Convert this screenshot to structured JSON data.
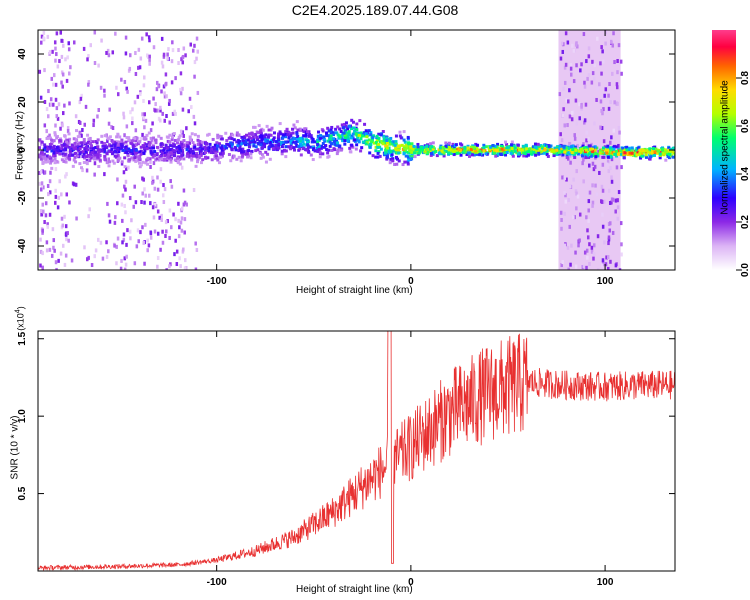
{
  "title": "C2E4.2025.189.07.44.G08",
  "chart_data": [
    {
      "type": "heatmap",
      "xlabel": "Height of straight line (km)",
      "ylabel": "Frequency (Hz)",
      "xlim": [
        -192,
        136
      ],
      "ylim": [
        -50,
        50
      ],
      "xticks": [
        -100,
        0,
        100
      ],
      "yticks": [
        -40,
        -20,
        0,
        20,
        40
      ],
      "colorbar": {
        "label": "Normalized spectral amplitude",
        "range": [
          0,
          1
        ],
        "ticks": [
          0.0,
          0.2,
          0.4,
          0.6,
          0.8
        ],
        "colors": [
          "#ffffff",
          "#dcb4f5",
          "#8c28e6",
          "#2d00ff",
          "#00b4ff",
          "#00ff6e",
          "#b4ff00",
          "#ffdc00",
          "#ff6400",
          "#ff0040",
          "#ff3c8c"
        ]
      },
      "ridge": [
        {
          "x": -192,
          "y": 0
        },
        {
          "x": -150,
          "y": 0
        },
        {
          "x": -110,
          "y": 0
        },
        {
          "x": -80,
          "y": 3
        },
        {
          "x": -60,
          "y": 4
        },
        {
          "x": -50,
          "y": 3
        },
        {
          "x": -40,
          "y": 5
        },
        {
          "x": -30,
          "y": 7
        },
        {
          "x": -20,
          "y": 3
        },
        {
          "x": -10,
          "y": 1
        },
        {
          "x": 0,
          "y": 0
        },
        {
          "x": 40,
          "y": 0
        },
        {
          "x": 70,
          "y": 0
        },
        {
          "x": 110,
          "y": -1
        },
        {
          "x": 136,
          "y": -1
        }
      ],
      "ridge_strength": [
        {
          "x": -192,
          "a": 0.35
        },
        {
          "x": -110,
          "a": 0.35
        },
        {
          "x": -60,
          "a": 0.5
        },
        {
          "x": -35,
          "a": 0.6
        },
        {
          "x": -20,
          "a": 0.75
        },
        {
          "x": 0,
          "a": 0.8
        },
        {
          "x": 40,
          "a": 0.9
        },
        {
          "x": 75,
          "a": 0.85
        },
        {
          "x": 110,
          "a": 0.95
        },
        {
          "x": 136,
          "a": 0.95
        }
      ],
      "noise_bands": [
        [
          -192,
          -176
        ],
        [
          -150,
          -116
        ],
        [
          76,
          108
        ]
      ]
    },
    {
      "type": "line",
      "xlabel": "Height of straight line (km)",
      "ylabel": "SNR (10 * v/v)",
      "y_multiplier": "(x10",
      "y_multiplier_exp": "4",
      "y_multiplier_close": ")",
      "xlim": [
        -192,
        136
      ],
      "ylim": [
        0,
        1.55
      ],
      "xticks": [
        -100,
        0,
        100
      ],
      "yticks": [
        0.5,
        1.0,
        1.5
      ],
      "ytick_labels": [
        "0.5",
        "1.0",
        "1.5"
      ],
      "color": "#e83030",
      "envelope": [
        {
          "x": -192,
          "y": 0.02
        },
        {
          "x": -150,
          "y": 0.03
        },
        {
          "x": -120,
          "y": 0.04
        },
        {
          "x": -100,
          "y": 0.07
        },
        {
          "x": -80,
          "y": 0.13
        },
        {
          "x": -60,
          "y": 0.22
        },
        {
          "x": -40,
          "y": 0.38
        },
        {
          "x": -20,
          "y": 0.6
        },
        {
          "x": 0,
          "y": 0.8
        },
        {
          "x": 20,
          "y": 1.02
        },
        {
          "x": 40,
          "y": 1.15
        },
        {
          "x": 60,
          "y": 1.22
        },
        {
          "x": 80,
          "y": 1.2
        },
        {
          "x": 100,
          "y": 1.19
        },
        {
          "x": 120,
          "y": 1.2
        },
        {
          "x": 136,
          "y": 1.2
        }
      ],
      "spike": {
        "x": -11,
        "y": 1.55
      }
    }
  ]
}
